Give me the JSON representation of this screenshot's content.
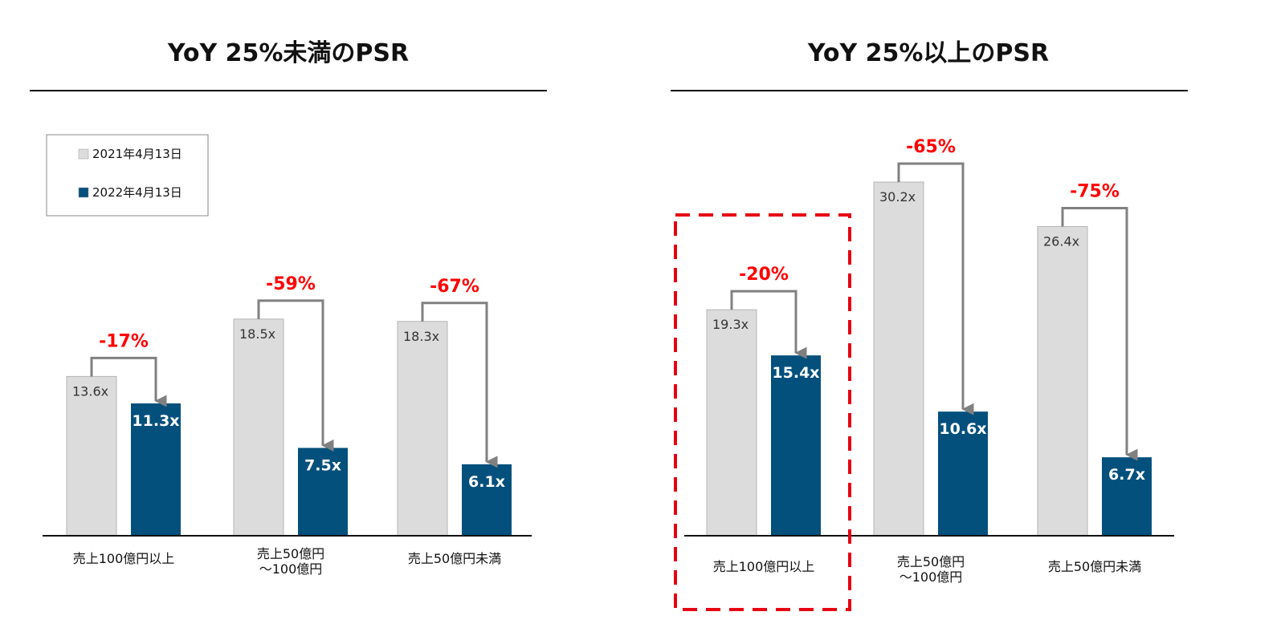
{
  "legend": {
    "items": [
      {
        "label": "2021年4月13日",
        "color": "#dcdcdc"
      },
      {
        "label": "2022年4月13日",
        "color": "#03507d"
      }
    ]
  },
  "colors": {
    "bar_2021": "#dcdcdc",
    "bar_2022": "#03507d",
    "change_label": "#ff0000",
    "arrow": "#808080",
    "highlight_border": "#e60012"
  },
  "chart_data": [
    {
      "type": "bar",
      "title": "YoY 25%未満のPSR",
      "categories": [
        "売上100億円以上",
        "売上50億円\n～100億円",
        "売上50億円未満"
      ],
      "series": [
        {
          "name": "2021年4月13日",
          "values": [
            13.6,
            18.5,
            18.3
          ],
          "labels": [
            "13.6x",
            "18.5x",
            "18.3x"
          ]
        },
        {
          "name": "2022年4月13日",
          "values": [
            11.3,
            7.5,
            6.1
          ],
          "labels": [
            "11.3x",
            "7.5x",
            "6.1x"
          ]
        }
      ],
      "changes": [
        "-17%",
        "-59%",
        "-67%"
      ],
      "ylim": [
        0,
        30.2
      ],
      "legend_position": "top-left",
      "grid": false
    },
    {
      "type": "bar",
      "title": "YoY 25%以上のPSR",
      "categories": [
        "売上100億円以上",
        "売上50億円\n～100億円",
        "売上50億円未満"
      ],
      "series": [
        {
          "name": "2021年4月13日",
          "values": [
            19.3,
            30.2,
            26.4
          ],
          "labels": [
            "19.3x",
            "30.2x",
            "26.4x"
          ]
        },
        {
          "name": "2022年4月13日",
          "values": [
            15.4,
            10.6,
            6.7
          ],
          "labels": [
            "15.4x",
            "10.6x",
            "6.7x"
          ]
        }
      ],
      "changes": [
        "-20%",
        "-65%",
        "-75%"
      ],
      "ylim": [
        0,
        30.2
      ],
      "highlighted_category": "売上100億円以上",
      "grid": false
    }
  ]
}
